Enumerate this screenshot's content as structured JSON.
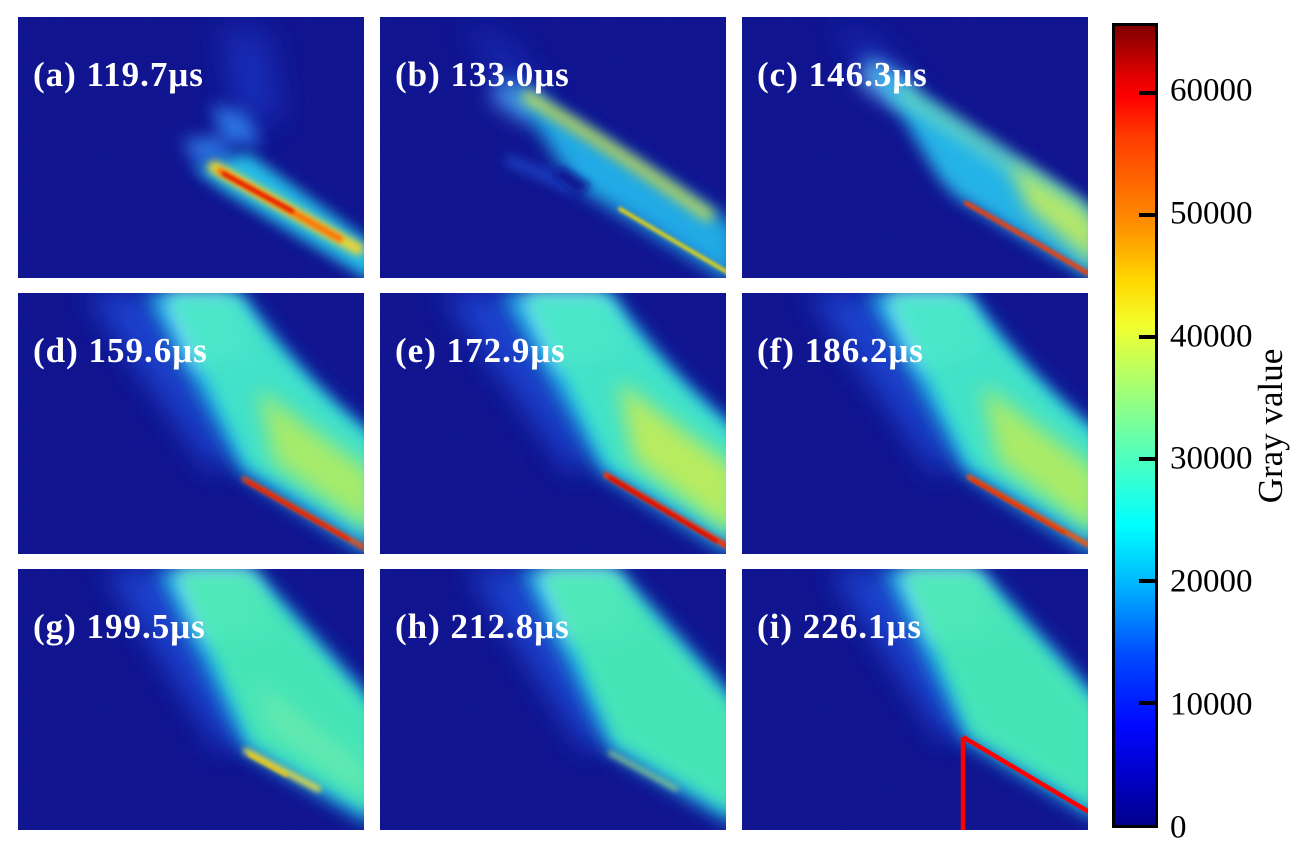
{
  "figure": {
    "panel_bg": "#0d108c",
    "label_color": "#ffffff",
    "grid": {
      "rows": 3,
      "cols": 3
    },
    "panels": [
      {
        "id": "a",
        "label": "(a) 119.7μs",
        "time_us": 119.7
      },
      {
        "id": "b",
        "label": "(b) 133.0μs",
        "time_us": 133.0
      },
      {
        "id": "c",
        "label": "(c) 146.3μs",
        "time_us": 146.3
      },
      {
        "id": "d",
        "label": "(d) 159.6μs",
        "time_us": 159.6
      },
      {
        "id": "e",
        "label": "(e) 172.9μs",
        "time_us": 172.9
      },
      {
        "id": "f",
        "label": "(f) 186.2μs",
        "time_us": 186.2
      },
      {
        "id": "g",
        "label": "(g) 199.5μs",
        "time_us": 199.5
      },
      {
        "id": "h",
        "label": "(h) 212.8μs",
        "time_us": 212.8
      },
      {
        "id": "i",
        "label": "(i) 226.1μs",
        "time_us": 226.1
      }
    ],
    "colorbar": {
      "title": "Gray value",
      "range": [
        0,
        65535
      ],
      "tick_values": [
        60000,
        50000,
        40000,
        30000,
        20000,
        10000,
        0
      ],
      "colormap": "jet"
    },
    "annotation": {
      "panel": "i",
      "type": "wedge-outline",
      "color": "#ff0000"
    }
  },
  "chart_data": {
    "type": "heatmap",
    "title": "",
    "layout": {
      "rows": 3,
      "cols": 3
    },
    "panels": [
      {
        "index": "a",
        "time_label": "119.7μs",
        "time_us": 119.7
      },
      {
        "index": "b",
        "time_label": "133.0μs",
        "time_us": 133.0
      },
      {
        "index": "c",
        "time_label": "146.3μs",
        "time_us": 146.3
      },
      {
        "index": "d",
        "time_label": "159.6μs",
        "time_us": 159.6
      },
      {
        "index": "e",
        "time_label": "172.9μs",
        "time_us": 172.9
      },
      {
        "index": "f",
        "time_label": "186.2μs",
        "time_us": 186.2
      },
      {
        "index": "g",
        "time_label": "199.5μs",
        "time_us": 199.5
      },
      {
        "index": "h",
        "time_label": "212.8μs",
        "time_us": 212.8
      },
      {
        "index": "i",
        "time_label": "226.1μs",
        "time_us": 226.1
      }
    ],
    "frame_interval_us": 13.3,
    "colorbar": {
      "label": "Gray value",
      "min": 0,
      "max": 65535,
      "ticks": [
        0,
        10000,
        20000,
        30000,
        40000,
        50000,
        60000
      ],
      "colormap": "jet"
    },
    "annotations": [
      {
        "panel": "i",
        "shape": "red wedge outline: vertical edge plus inclined edge along jet underside",
        "color": "#ff0000"
      }
    ]
  }
}
